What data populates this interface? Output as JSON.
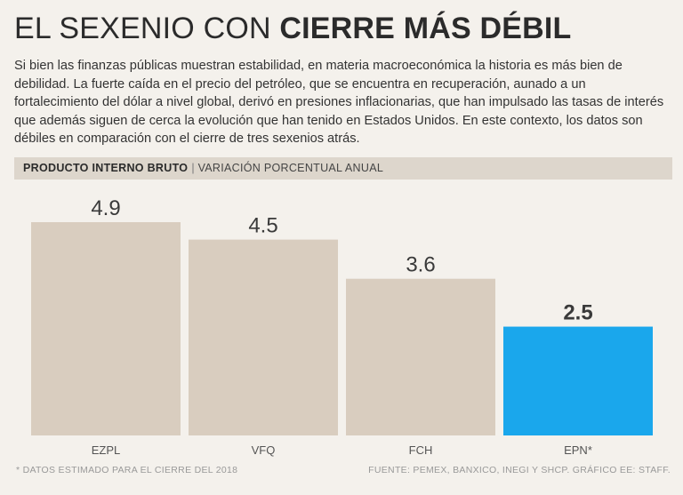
{
  "header": {
    "title_light": "EL SEXENIO CON",
    "title_bold": "CIERRE MÁS DÉBIL",
    "intro": "Si bien las finanzas públicas muestran estabilidad, en materia macroeconómica la historia es más bien de debilidad. La fuerte caída en el precio del petróleo, que se encuentra en recuperación, aunado a un fortalecimiento del dólar a nivel global, derivó en presiones inflacionarias, que han impulsado las tasas de interés que además siguen de cerca la evolución que han tenido en Estados Unidos. En este contexto, los datos son débiles en comparación con el cierre de tres sexenios atrás."
  },
  "chart_data": {
    "type": "bar",
    "title": "PRODUCTO INTERNO BRUTO",
    "subtitle": "VARIACIÓN PORCENTUAL ANUAL",
    "separator": "|",
    "categories": [
      "EZPL",
      "VFQ",
      "FCH",
      "EPN*"
    ],
    "values": [
      4.9,
      4.5,
      3.6,
      2.5
    ],
    "value_labels": [
      "4.9",
      "4.5",
      "3.6",
      "2.5"
    ],
    "highlight_index": 3,
    "ylim": [
      0,
      4.9
    ],
    "xlabel": "",
    "ylabel": "",
    "grid": false,
    "colors": {
      "bar": "#d9cdbf",
      "highlight": "#1aa7ec",
      "label": "#3a3a3a"
    }
  },
  "footer": {
    "footnote": "* DATOS ESTIMADO PARA EL CIERRE DEL 2018",
    "source": "FUENTE: PEMEX, BANXICO, INEGI Y SHCP.  GRÁFICO EE: STAFF."
  }
}
